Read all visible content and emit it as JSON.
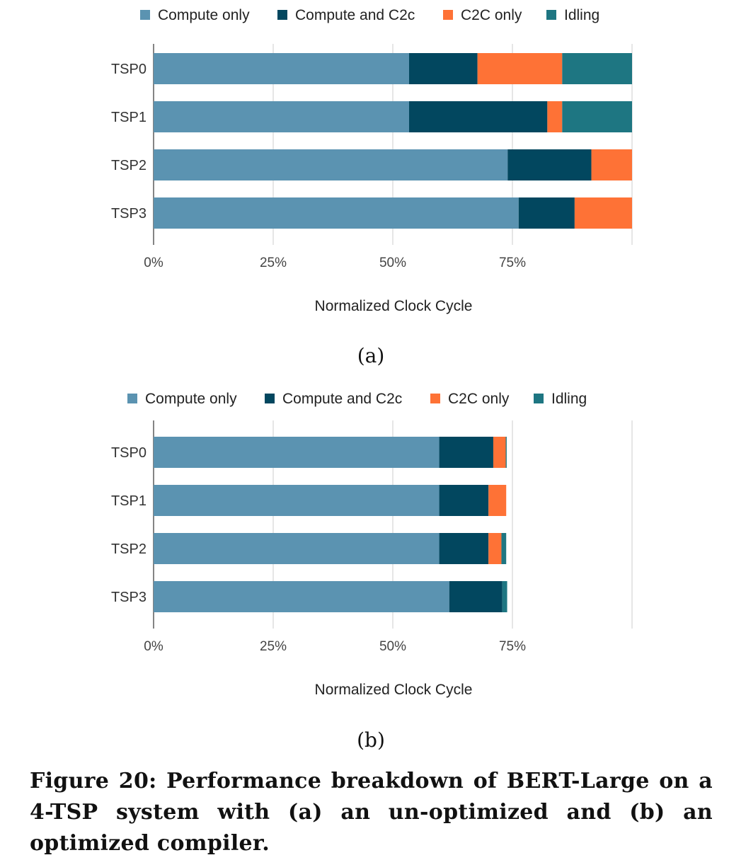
{
  "chart_data": [
    {
      "type": "bar",
      "orientation": "horizontal",
      "stacked": true,
      "panel_label": "(a)",
      "categories": [
        "TSP0",
        "TSP1",
        "TSP2",
        "TSP3"
      ],
      "series": [
        {
          "name": "Compute only",
          "color": "#5b93b1",
          "values": [
            53.4,
            53.4,
            74,
            76.3
          ]
        },
        {
          "name": "Compute and C2c",
          "color": "#02475f",
          "values": [
            14.3,
            28.9,
            17.5,
            11.7
          ]
        },
        {
          "name": "C2C only",
          "color": "#fe7236",
          "values": [
            17.7,
            3.1,
            8.5,
            12.0
          ]
        },
        {
          "name": "Idling",
          "color": "#1e7682",
          "values": [
            14.6,
            14.6,
            0,
            0
          ]
        }
      ],
      "xlabel": "Normalized Clock Cycle",
      "xticks": [
        "0%",
        "25%",
        "50%",
        "75%"
      ],
      "xlim": [
        0,
        100
      ],
      "grid": true,
      "legend_position": "top"
    },
    {
      "type": "bar",
      "orientation": "horizontal",
      "stacked": true,
      "panel_label": "(b)",
      "categories": [
        "TSP0",
        "TSP1",
        "TSP2",
        "TSP3"
      ],
      "series": [
        {
          "name": "Compute only",
          "color": "#5b93b1",
          "values": [
            59.7,
            59.7,
            59.7,
            61.8
          ]
        },
        {
          "name": "Compute and C2c",
          "color": "#02475f",
          "values": [
            11.3,
            10.3,
            10.3,
            11.1
          ]
        },
        {
          "name": "C2C only",
          "color": "#fe7236",
          "values": [
            2.6,
            3.7,
            2.7,
            0
          ]
        },
        {
          "name": "Idling",
          "color": "#1e7682",
          "values": [
            0.2,
            0,
            1.0,
            1.0
          ]
        }
      ],
      "xlabel": "Normalized Clock Cycle",
      "xticks": [
        "0%",
        "25%",
        "50%",
        "75%"
      ],
      "xlim": [
        0,
        100
      ],
      "grid": true,
      "legend_position": "top"
    }
  ],
  "caption": "Figure 20: Performance breakdown of BERT-Large on a 4-TSP system with (a) an un-optimized and (b) an optimized compiler."
}
